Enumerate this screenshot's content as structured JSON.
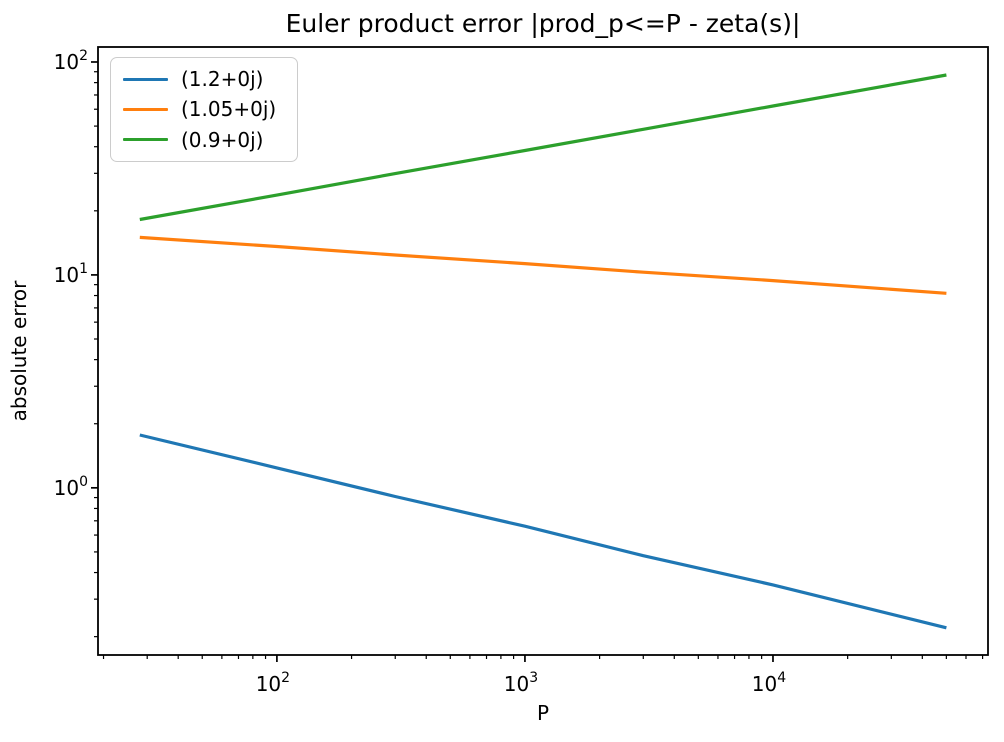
{
  "chart_data": {
    "type": "line",
    "title": "Euler product error |prod_p<=P - zeta(s)|",
    "xlabel": "P",
    "ylabel": "absolute error",
    "xscale": "log",
    "yscale": "log",
    "xlim": [
      19,
      73600
    ],
    "ylim": [
      0.164,
      117.6
    ],
    "grid": false,
    "axis_color": "#000000",
    "x": [
      28,
      100,
      300,
      1000,
      3000,
      10000,
      50000
    ],
    "series": [
      {
        "label": "(1.2+0j)",
        "color": "#1f77b4",
        "values": [
          1.77,
          1.24,
          0.91,
          0.66,
          0.48,
          0.35,
          0.22
        ]
      },
      {
        "label": "(1.05+0j)",
        "color": "#ff7f0e",
        "values": [
          15.0,
          13.6,
          12.4,
          11.3,
          10.3,
          9.4,
          8.2
        ]
      },
      {
        "label": "(0.9+0j)",
        "color": "#2ca02c",
        "values": [
          18.2,
          23.7,
          29.9,
          38.4,
          48.3,
          62.1,
          86.9
        ]
      }
    ],
    "x_ticks": [
      {
        "value": 100,
        "base": "10",
        "exp": "2"
      },
      {
        "value": 1000,
        "base": "10",
        "exp": "3"
      },
      {
        "value": 10000,
        "base": "10",
        "exp": "4"
      }
    ],
    "y_ticks": [
      {
        "value": 1,
        "base": "10",
        "exp": "0"
      },
      {
        "value": 10,
        "base": "10",
        "exp": "1"
      },
      {
        "value": 100,
        "base": "10",
        "exp": "2"
      }
    ],
    "legend": {
      "position": "upper left"
    }
  }
}
